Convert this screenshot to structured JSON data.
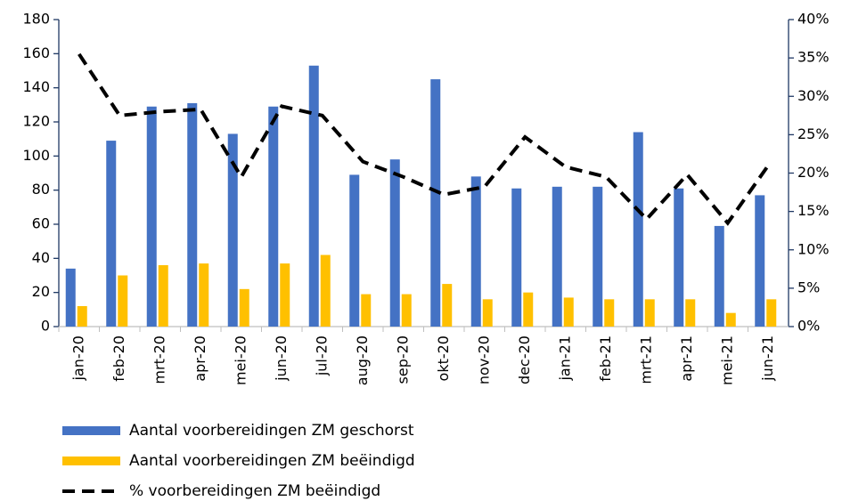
{
  "chart_data": {
    "type": "bar",
    "categories": [
      "jan-20",
      "feb-20",
      "mrt-20",
      "apr-20",
      "mei-20",
      "jun-20",
      "jul-20",
      "aug-20",
      "sep-20",
      "okt-20",
      "nov-20",
      "dec-20",
      "jan-21",
      "feb-21",
      "mrt-21",
      "apr-21",
      "mei-21",
      "jun-21"
    ],
    "series": [
      {
        "name": "Aantal voorbereidingen ZM geschorst",
        "type": "bar",
        "color": "#4472c4",
        "values": [
          34,
          109,
          129,
          131,
          113,
          129,
          153,
          89,
          98,
          145,
          88,
          81,
          82,
          82,
          114,
          81,
          59,
          77
        ]
      },
      {
        "name": "Aantal voorbereidingen ZM beëindigd",
        "type": "bar",
        "color": "#ffc000",
        "values": [
          12,
          30,
          36,
          37,
          22,
          37,
          42,
          19,
          19,
          25,
          16,
          20,
          17,
          16,
          16,
          16,
          8,
          16
        ]
      },
      {
        "name": "% voorbereidingen ZM beëindigd",
        "type": "line",
        "axis": "y2",
        "color": "#000000",
        "dashed": true,
        "values": [
          35.5,
          27.5,
          28,
          28.3,
          19.5,
          28.7,
          27.5,
          21.5,
          19.5,
          17.2,
          18.2,
          24.7,
          20.8,
          19.5,
          14,
          19.8,
          13.5,
          21
        ]
      }
    ],
    "ylim": [
      0,
      180
    ],
    "yticks": [
      0,
      20,
      40,
      60,
      80,
      100,
      120,
      140,
      160,
      180
    ],
    "y2lim": [
      0,
      40
    ],
    "y2ticks": [
      {
        "value": 0,
        "label": "0%"
      },
      {
        "value": 5,
        "label": "5%"
      },
      {
        "value": 10,
        "label": "10%"
      },
      {
        "value": 15,
        "label": "15%"
      },
      {
        "value": 20,
        "label": "20%"
      },
      {
        "value": 25,
        "label": "25%"
      },
      {
        "value": 30,
        "label": "30%"
      },
      {
        "value": 35,
        "label": "35%"
      },
      {
        "value": 40,
        "label": "40%"
      }
    ],
    "legend": "bottom"
  }
}
